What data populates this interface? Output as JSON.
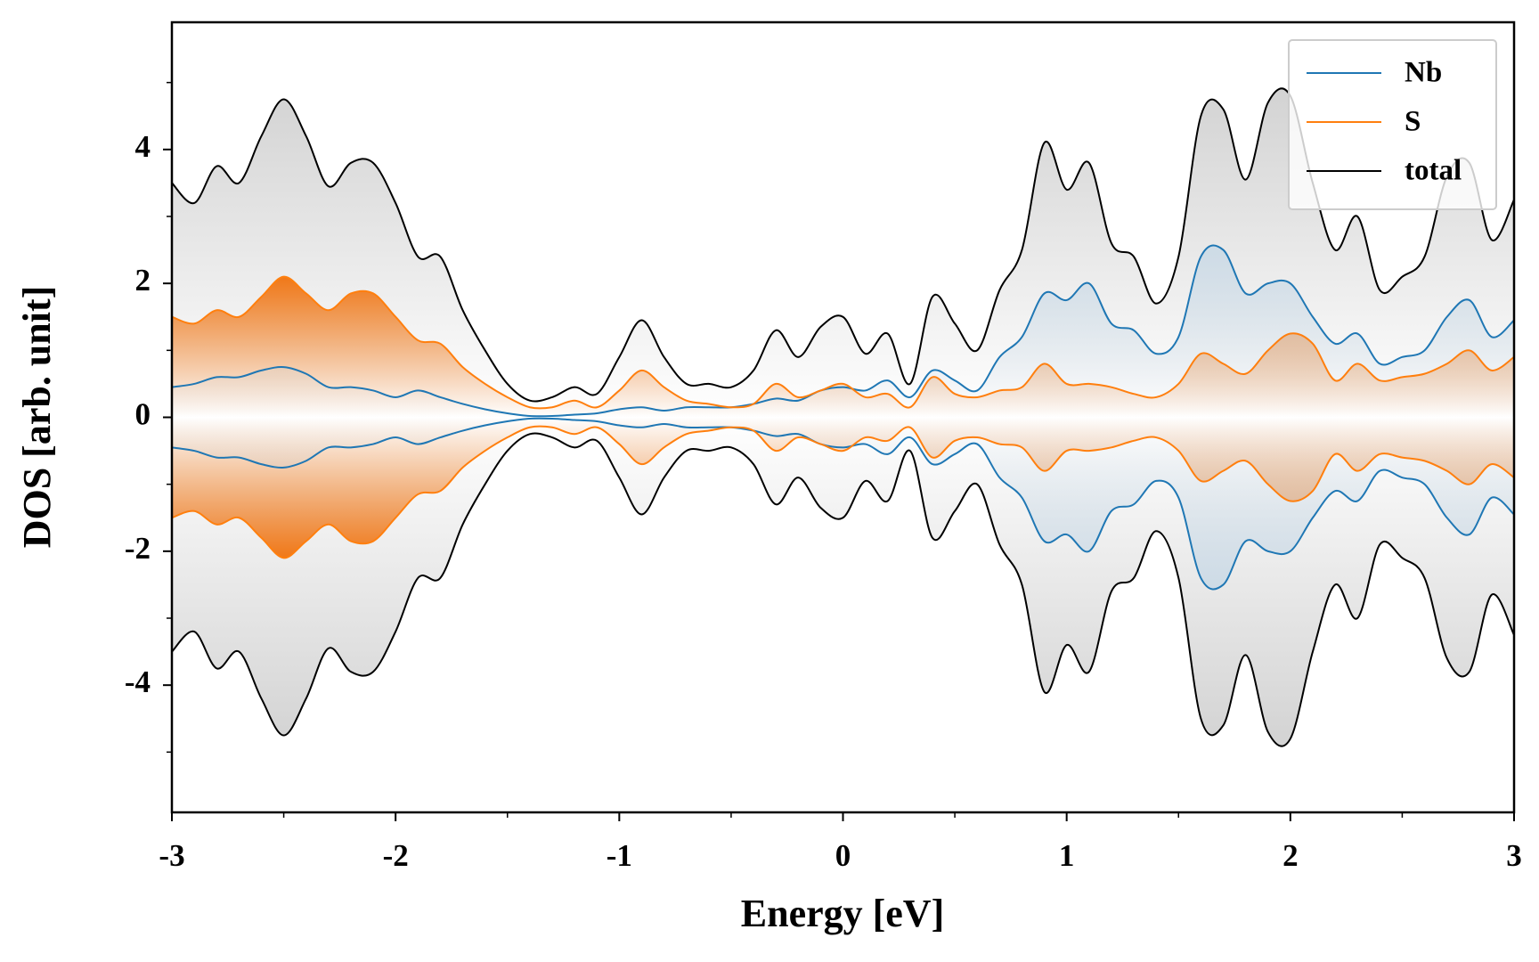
{
  "chart_data": {
    "type": "line",
    "xlabel": "Energy [eV]",
    "ylabel": "DOS [arb. unit]",
    "x": [
      -3.0,
      -2.9,
      -2.8,
      -2.7,
      -2.6,
      -2.5,
      -2.4,
      -2.3,
      -2.2,
      -2.1,
      -2.0,
      -1.9,
      -1.8,
      -1.7,
      -1.6,
      -1.5,
      -1.4,
      -1.3,
      -1.2,
      -1.1,
      -1.0,
      -0.9,
      -0.8,
      -0.7,
      -0.6,
      -0.5,
      -0.4,
      -0.3,
      -0.2,
      -0.1,
      0.0,
      0.1,
      0.2,
      0.3,
      0.4,
      0.5,
      0.6,
      0.7,
      0.8,
      0.9,
      1.0,
      1.1,
      1.2,
      1.3,
      1.4,
      1.5,
      1.6,
      1.7,
      1.8,
      1.9,
      2.0,
      2.1,
      2.2,
      2.3,
      2.4,
      2.5,
      2.6,
      2.7,
      2.8,
      2.9,
      3.0
    ],
    "series": [
      {
        "name": "Nb",
        "color": "#1f77b4",
        "fill": "#c9d9e6",
        "values": [
          0.45,
          0.5,
          0.6,
          0.6,
          0.7,
          0.75,
          0.65,
          0.45,
          0.45,
          0.4,
          0.3,
          0.4,
          0.3,
          0.2,
          0.12,
          0.06,
          0.02,
          0.02,
          0.04,
          0.06,
          0.12,
          0.15,
          0.1,
          0.15,
          0.15,
          0.15,
          0.2,
          0.28,
          0.25,
          0.4,
          0.45,
          0.4,
          0.55,
          0.3,
          0.7,
          0.55,
          0.4,
          0.9,
          1.2,
          1.85,
          1.75,
          2.0,
          1.4,
          1.3,
          0.95,
          1.2,
          2.4,
          2.5,
          1.85,
          2.0,
          2.0,
          1.5,
          1.1,
          1.25,
          0.8,
          0.9,
          1.0,
          1.5,
          1.75,
          1.2,
          1.45
        ],
        "values_down": [
          -0.45,
          -0.5,
          -0.6,
          -0.6,
          -0.7,
          -0.75,
          -0.65,
          -0.45,
          -0.45,
          -0.4,
          -0.3,
          -0.4,
          -0.3,
          -0.2,
          -0.12,
          -0.06,
          -0.02,
          -0.02,
          -0.04,
          -0.06,
          -0.12,
          -0.15,
          -0.1,
          -0.15,
          -0.15,
          -0.15,
          -0.2,
          -0.28,
          -0.25,
          -0.4,
          -0.45,
          -0.4,
          -0.55,
          -0.3,
          -0.7,
          -0.55,
          -0.4,
          -0.9,
          -1.2,
          -1.85,
          -1.75,
          -2.0,
          -1.4,
          -1.3,
          -0.95,
          -1.2,
          -2.4,
          -2.5,
          -1.85,
          -2.0,
          -2.0,
          -1.5,
          -1.1,
          -1.25,
          -0.8,
          -0.9,
          -1.0,
          -1.5,
          -1.75,
          -1.2,
          -1.45
        ]
      },
      {
        "name": "S",
        "color": "#ff7f0e",
        "fill": "#f07818",
        "values": [
          1.5,
          1.4,
          1.6,
          1.5,
          1.8,
          2.1,
          1.85,
          1.6,
          1.85,
          1.85,
          1.5,
          1.15,
          1.1,
          0.75,
          0.5,
          0.3,
          0.15,
          0.15,
          0.25,
          0.15,
          0.4,
          0.7,
          0.45,
          0.25,
          0.2,
          0.15,
          0.2,
          0.5,
          0.3,
          0.4,
          0.5,
          0.3,
          0.35,
          0.15,
          0.6,
          0.35,
          0.3,
          0.4,
          0.45,
          0.8,
          0.5,
          0.5,
          0.45,
          0.35,
          0.3,
          0.5,
          0.95,
          0.8,
          0.65,
          1.0,
          1.25,
          1.1,
          0.55,
          0.8,
          0.55,
          0.6,
          0.65,
          0.8,
          1.0,
          0.7,
          0.9
        ],
        "values_down": [
          -1.5,
          -1.4,
          -1.6,
          -1.5,
          -1.8,
          -2.1,
          -1.85,
          -1.6,
          -1.85,
          -1.85,
          -1.5,
          -1.15,
          -1.1,
          -0.75,
          -0.5,
          -0.3,
          -0.15,
          -0.15,
          -0.25,
          -0.15,
          -0.4,
          -0.7,
          -0.45,
          -0.25,
          -0.2,
          -0.15,
          -0.2,
          -0.5,
          -0.3,
          -0.4,
          -0.5,
          -0.3,
          -0.35,
          -0.15,
          -0.6,
          -0.35,
          -0.3,
          -0.4,
          -0.45,
          -0.8,
          -0.5,
          -0.5,
          -0.45,
          -0.35,
          -0.3,
          -0.5,
          -0.95,
          -0.8,
          -0.65,
          -1.0,
          -1.25,
          -1.1,
          -0.55,
          -0.8,
          -0.55,
          -0.6,
          -0.65,
          -0.8,
          -1.0,
          -0.7,
          -0.9
        ]
      },
      {
        "name": "total",
        "color": "#000000",
        "fill": "#cccccc",
        "values": [
          3.5,
          3.2,
          3.75,
          3.5,
          4.2,
          4.75,
          4.2,
          3.45,
          3.8,
          3.8,
          3.2,
          2.4,
          2.4,
          1.6,
          1.0,
          0.5,
          0.25,
          0.3,
          0.45,
          0.35,
          0.9,
          1.45,
          0.9,
          0.5,
          0.5,
          0.45,
          0.7,
          1.3,
          0.9,
          1.35,
          1.5,
          0.95,
          1.25,
          0.5,
          1.8,
          1.4,
          1.0,
          1.9,
          2.5,
          4.1,
          3.4,
          3.8,
          2.6,
          2.4,
          1.7,
          2.4,
          4.5,
          4.6,
          3.55,
          4.7,
          4.8,
          3.5,
          2.5,
          3.0,
          1.9,
          2.1,
          2.4,
          3.6,
          3.8,
          2.65,
          3.25
        ],
        "values_down": [
          -3.5,
          -3.2,
          -3.75,
          -3.5,
          -4.2,
          -4.75,
          -4.2,
          -3.45,
          -3.8,
          -3.8,
          -3.2,
          -2.4,
          -2.4,
          -1.6,
          -1.0,
          -0.5,
          -0.25,
          -0.3,
          -0.45,
          -0.35,
          -0.9,
          -1.45,
          -0.9,
          -0.5,
          -0.5,
          -0.45,
          -0.7,
          -1.3,
          -0.9,
          -1.35,
          -1.5,
          -0.95,
          -1.25,
          -0.5,
          -1.8,
          -1.4,
          -1.0,
          -1.9,
          -2.5,
          -4.1,
          -3.4,
          -3.8,
          -2.6,
          -2.4,
          -1.7,
          -2.4,
          -4.5,
          -4.6,
          -3.55,
          -4.7,
          -4.8,
          -3.5,
          -2.5,
          -3.0,
          -1.9,
          -2.1,
          -2.4,
          -3.6,
          -3.8,
          -2.65,
          -3.25
        ]
      }
    ],
    "xlim": [
      -3,
      3
    ],
    "xticks": [
      -3,
      -2,
      -1,
      0,
      1,
      2,
      3
    ],
    "xticks_minor": [
      -2.5,
      -1.5,
      -0.5,
      0.5,
      1.5,
      2.5
    ],
    "ylim": [
      -5.9,
      5.9
    ],
    "yticks": [
      -4,
      -2,
      0,
      2,
      4
    ],
    "yticks_minor": [
      -5,
      -3,
      -1,
      1,
      3,
      5
    ],
    "legend": "upper right"
  }
}
